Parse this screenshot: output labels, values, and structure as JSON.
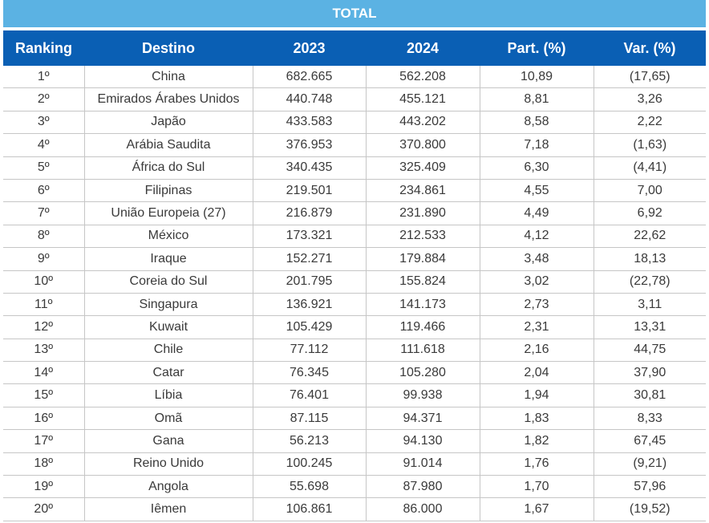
{
  "title": "TOTAL",
  "columns": [
    "Ranking",
    "Destino",
    "2023",
    "2024",
    "Part. (%)",
    "Var. (%)"
  ],
  "rows": [
    [
      "1º",
      "China",
      "682.665",
      "562.208",
      "10,89",
      "(17,65)"
    ],
    [
      "2º",
      "Emirados Árabes Unidos",
      "440.748",
      "455.121",
      "8,81",
      "3,26"
    ],
    [
      "3º",
      "Japão",
      "433.583",
      "443.202",
      "8,58",
      "2,22"
    ],
    [
      "4º",
      "Arábia Saudita",
      "376.953",
      "370.800",
      "7,18",
      "(1,63)"
    ],
    [
      "5º",
      "África do Sul",
      "340.435",
      "325.409",
      "6,30",
      "(4,41)"
    ],
    [
      "6º",
      "Filipinas",
      "219.501",
      "234.861",
      "4,55",
      "7,00"
    ],
    [
      "7º",
      "União Europeia (27)",
      "216.879",
      "231.890",
      "4,49",
      "6,92"
    ],
    [
      "8º",
      "México",
      "173.321",
      "212.533",
      "4,12",
      "22,62"
    ],
    [
      "9º",
      "Iraque",
      "152.271",
      "179.884",
      "3,48",
      "18,13"
    ],
    [
      "10º",
      "Coreia do Sul",
      "201.795",
      "155.824",
      "3,02",
      "(22,78)"
    ],
    [
      "11º",
      "Singapura",
      "136.921",
      "141.173",
      "2,73",
      "3,11"
    ],
    [
      "12º",
      "Kuwait",
      "105.429",
      "119.466",
      "2,31",
      "13,31"
    ],
    [
      "13º",
      "Chile",
      "77.112",
      "111.618",
      "2,16",
      "44,75"
    ],
    [
      "14º",
      "Catar",
      "76.345",
      "105.280",
      "2,04",
      "37,90"
    ],
    [
      "15º",
      "Líbia",
      "76.401",
      "99.938",
      "1,94",
      "30,81"
    ],
    [
      "16º",
      "Omã",
      "87.115",
      "94.371",
      "1,83",
      "8,33"
    ],
    [
      "17º",
      "Gana",
      "56.213",
      "94.130",
      "1,82",
      "67,45"
    ],
    [
      "18º",
      "Reino Unido",
      "100.245",
      "91.014",
      "1,76",
      "(9,21)"
    ],
    [
      "19º",
      "Angola",
      "55.698",
      "87.980",
      "1,70",
      "57,96"
    ],
    [
      "20º",
      "Iêmen",
      "106.861",
      "86.000",
      "1,67",
      "(19,52)"
    ]
  ]
}
